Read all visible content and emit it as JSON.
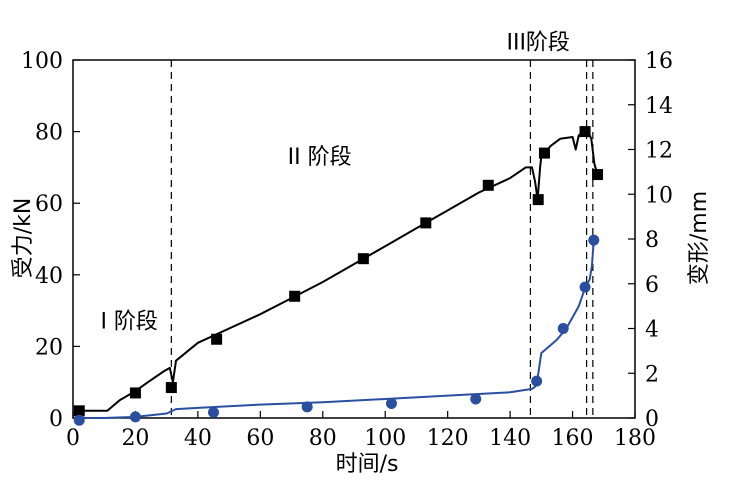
{
  "chart_data": {
    "type": "line",
    "title": "",
    "xlabel": "时间/s",
    "ylabel": "受力/kN",
    "y2label": "变形/mm",
    "xlim": [
      0,
      180
    ],
    "ylim": [
      0,
      100
    ],
    "y2lim": [
      0,
      16
    ],
    "x_ticks": [
      "0",
      "20",
      "40",
      "60",
      "80",
      "100",
      "120",
      "140",
      "160",
      "180"
    ],
    "y_ticks": [
      "0",
      "20",
      "40",
      "60",
      "80",
      "100"
    ],
    "y2_ticks": [
      "0",
      "2",
      "4",
      "6",
      "8",
      "10",
      "12",
      "14",
      "16"
    ],
    "grid": false,
    "legend": "none",
    "stage_boundaries_x": [
      31.5,
      146.5,
      164.5,
      166.5
    ],
    "annotations": [
      {
        "text": "I 阶段",
        "x": 18,
        "y": 25
      },
      {
        "text": "II 阶段",
        "x": 79,
        "y": 71
      },
      {
        "text": "III阶段",
        "x": 149,
        "y": 103
      }
    ],
    "series": [
      {
        "axis": "left",
        "color": "#000000",
        "marker": "square",
        "line": [
          [
            2,
            2
          ],
          [
            11,
            2
          ],
          [
            15,
            5
          ],
          [
            20,
            7.5
          ],
          [
            24,
            10
          ],
          [
            29,
            13
          ],
          [
            31,
            14
          ],
          [
            32,
            10
          ],
          [
            33,
            16
          ],
          [
            40,
            21
          ],
          [
            50,
            25
          ],
          [
            60,
            29
          ],
          [
            70,
            33.5
          ],
          [
            80,
            38
          ],
          [
            90,
            43
          ],
          [
            100,
            48
          ],
          [
            110,
            53
          ],
          [
            120,
            58
          ],
          [
            130,
            63
          ],
          [
            140,
            67
          ],
          [
            145,
            70
          ],
          [
            147,
            70
          ],
          [
            148,
            66
          ],
          [
            148.8,
            61
          ],
          [
            149.6,
            70
          ],
          [
            150,
            73
          ],
          [
            151,
            74
          ],
          [
            153,
            76
          ],
          [
            156,
            78
          ],
          [
            160,
            78.5
          ],
          [
            161,
            75
          ],
          [
            162,
            79
          ],
          [
            164,
            80
          ],
          [
            165,
            80
          ],
          [
            166,
            78
          ],
          [
            167,
            71
          ],
          [
            168,
            68
          ]
        ],
        "markers": [
          [
            2,
            2
          ],
          [
            20,
            7
          ],
          [
            31.5,
            8.5
          ],
          [
            46,
            22
          ],
          [
            71,
            34
          ],
          [
            93,
            44.5
          ],
          [
            113,
            54.5
          ],
          [
            133,
            65
          ],
          [
            149,
            61
          ],
          [
            151,
            74
          ],
          [
            164,
            80
          ],
          [
            168,
            68
          ]
        ]
      },
      {
        "axis": "right",
        "color": "#2a4fa0",
        "marker": "circle",
        "line": [
          [
            2,
            0
          ],
          [
            10,
            0
          ],
          [
            20,
            0.05
          ],
          [
            30,
            0.2
          ],
          [
            33,
            0.4
          ],
          [
            40,
            0.45
          ],
          [
            60,
            0.6
          ],
          [
            80,
            0.7
          ],
          [
            100,
            0.85
          ],
          [
            120,
            1.0
          ],
          [
            140,
            1.15
          ],
          [
            147,
            1.3
          ],
          [
            148,
            1.4
          ],
          [
            148.6,
            1.6
          ],
          [
            150,
            2.9
          ],
          [
            155,
            3.5
          ],
          [
            158,
            4.0
          ],
          [
            160,
            4.5
          ],
          [
            162,
            5.0
          ],
          [
            164,
            5.8
          ],
          [
            165.5,
            6.2
          ],
          [
            166.2,
            6.8
          ],
          [
            166.6,
            7.6
          ],
          [
            167,
            8.0
          ]
        ],
        "markers": [
          [
            2,
            -0.1
          ],
          [
            20,
            0.05
          ],
          [
            45,
            0.25
          ],
          [
            75,
            0.5
          ],
          [
            102,
            0.65
          ],
          [
            129,
            0.85
          ],
          [
            148.5,
            1.65
          ],
          [
            157,
            4.0
          ],
          [
            164,
            5.85
          ],
          [
            166.8,
            7.95
          ]
        ]
      }
    ]
  }
}
